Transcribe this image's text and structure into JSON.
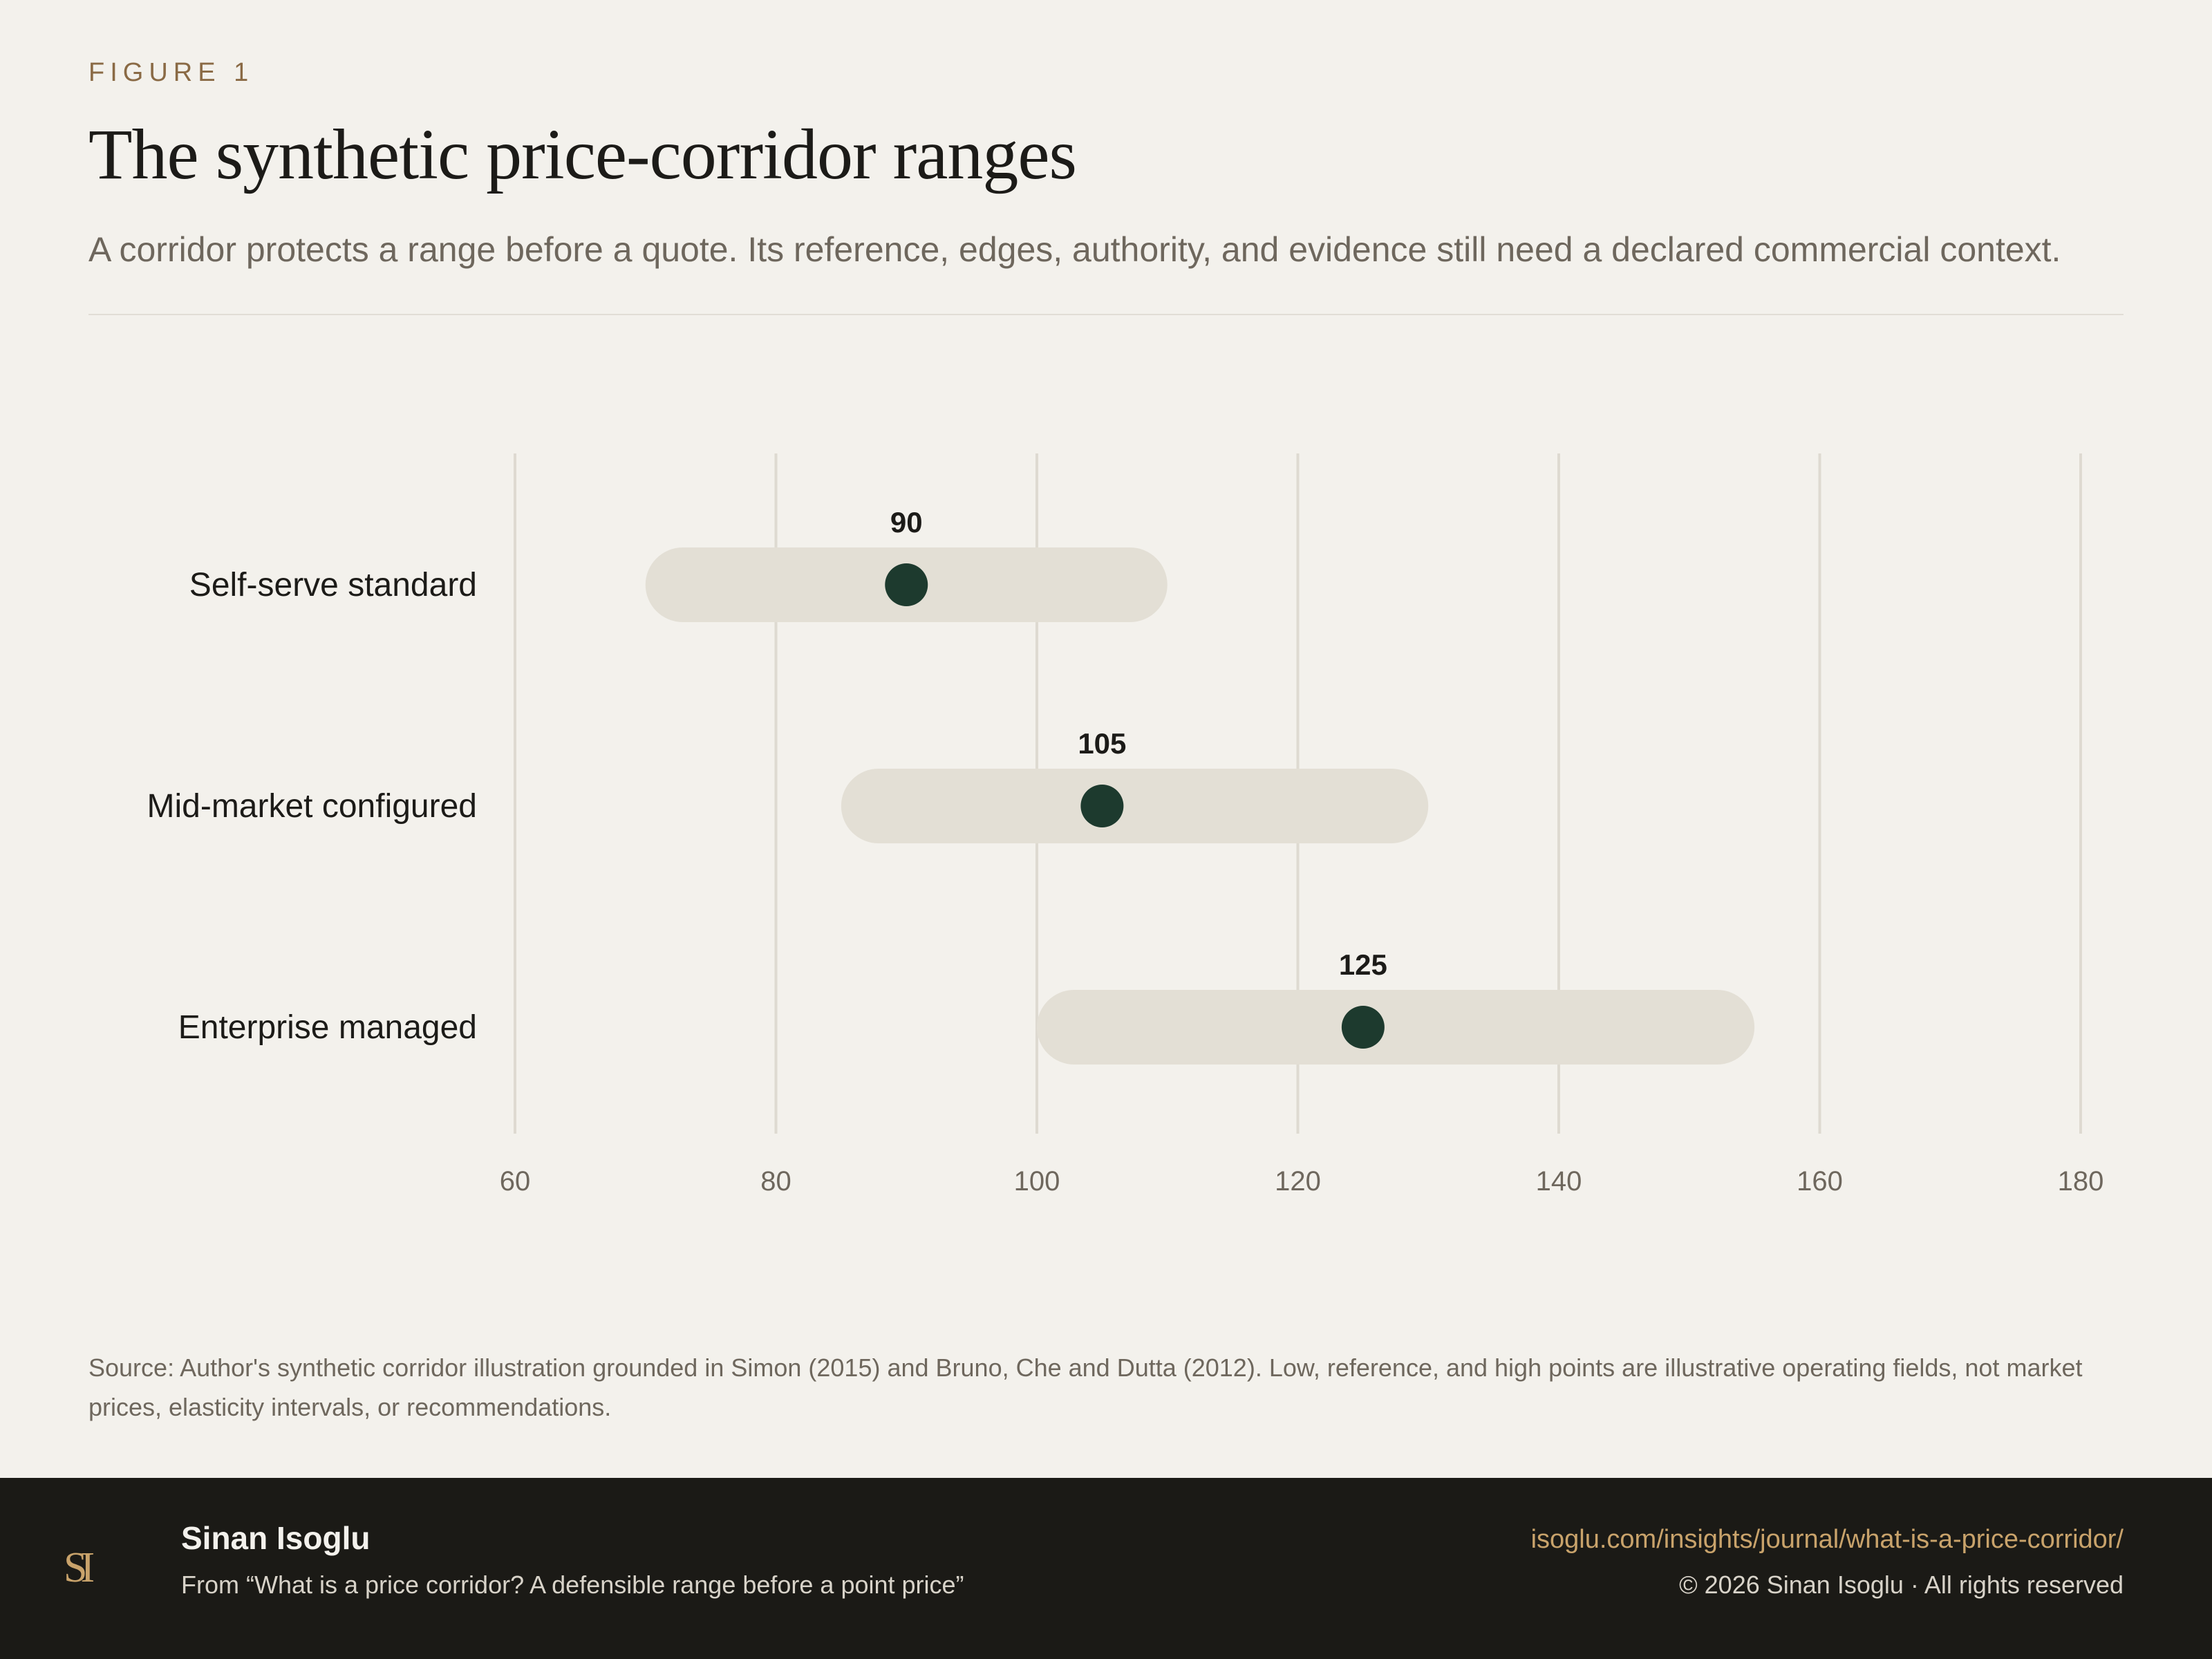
{
  "header": {
    "eyebrow": "FIGURE 1",
    "title": "The synthetic price-corridor ranges",
    "subtitle": "A corridor protects a range before a quote. Its reference, edges, authority, and evidence still need a declared commercial context."
  },
  "chart_data": {
    "type": "range-dot",
    "categories": [
      "Self-serve standard",
      "Mid-market configured",
      "Enterprise managed"
    ],
    "low": [
      70,
      85,
      100
    ],
    "reference": [
      90,
      105,
      125
    ],
    "high": [
      110,
      130,
      155
    ],
    "xlim": [
      60,
      180
    ],
    "xticks": [
      60,
      80,
      100,
      120,
      140,
      160,
      180
    ],
    "grid": true,
    "colors": {
      "range": "#e3dfd5",
      "dot": "#1d3a2e",
      "grid": "#dedad1",
      "tick": "#6e675d"
    }
  },
  "note": "Source: Author's synthetic corridor illustration grounded in Simon (2015) and Bruno, Che and Dutta (2012). Low, reference, and high points are illustrative operating fields, not market prices, elasticity intervals, or recommendations.",
  "footer": {
    "monogram": "SI",
    "author": "Sinan Isoglu",
    "from": "From “What is a price corridor? A defensible range before a point price”",
    "url": "isoglu.com/insights/journal/what-is-a-price-corridor/",
    "copyright": "© 2026 Sinan Isoglu · All rights reserved"
  }
}
